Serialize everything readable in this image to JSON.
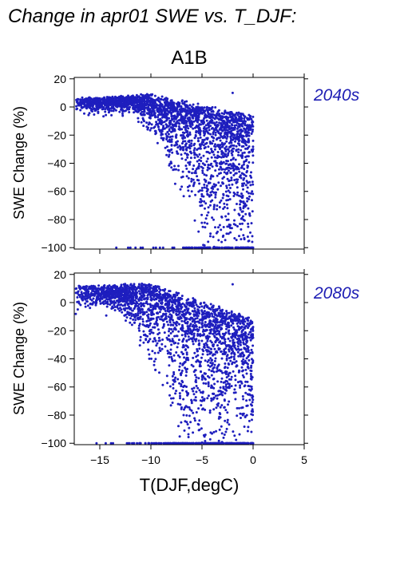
{
  "figure": {
    "suptitle": "Change in apr01 SWE vs. T_DJF:",
    "title": "A1B",
    "xlabel": "T(DJF,degC)"
  },
  "chart_data": [
    {
      "type": "scatter",
      "period_label": "2040s",
      "ylabel": "SWE Change (%)",
      "xlim": [
        -17.5,
        5
      ],
      "ylim": [
        -101,
        21
      ],
      "xticks": [
        -15,
        -10,
        -5,
        0,
        5
      ],
      "yticks": [
        20,
        0,
        -20,
        -40,
        -60,
        -80,
        -100
      ],
      "x_tick_labels_shown": false,
      "point_color": "#1e1ebe",
      "label_color": "#1e1eb4",
      "point_count_approx": 2600,
      "description_points": [
        [
          -17.3,
          5
        ],
        [
          -16,
          5
        ],
        [
          -14,
          6
        ],
        [
          -12,
          7
        ],
        [
          -10,
          5
        ],
        [
          -9,
          2
        ],
        [
          -8,
          -5
        ],
        [
          -9,
          -20
        ],
        [
          -8,
          -40
        ],
        [
          -7,
          -50
        ],
        [
          -6,
          -60
        ],
        [
          -5,
          -70
        ],
        [
          -4,
          -60
        ],
        [
          -3,
          -40
        ],
        [
          -2,
          10
        ],
        [
          -1,
          -5
        ],
        [
          0,
          -30
        ],
        [
          -11,
          -100
        ],
        [
          -6,
          -100
        ],
        [
          0,
          -100
        ]
      ]
    },
    {
      "type": "scatter",
      "period_label": "2080s",
      "ylabel": "SWE Change (%)",
      "xlim": [
        -17.5,
        5
      ],
      "ylim": [
        -101,
        21
      ],
      "xticks": [
        -15,
        -10,
        -5,
        0,
        5
      ],
      "xtick_labels": [
        "−15",
        "−10",
        "−5",
        "0",
        "5"
      ],
      "yticks": [
        20,
        0,
        -20,
        -40,
        -60,
        -80,
        -100
      ],
      "point_color": "#1e1ebe",
      "label_color": "#1e1eb4",
      "point_count_approx": 2600,
      "description_points": [
        [
          -17.3,
          10
        ],
        [
          -16,
          10
        ],
        [
          -14,
          10
        ],
        [
          -12,
          10
        ],
        [
          -10,
          5
        ],
        [
          -9,
          -10
        ],
        [
          -8,
          -30
        ],
        [
          -7,
          -50
        ],
        [
          -6,
          -70
        ],
        [
          -5,
          -70
        ],
        [
          -4,
          -60
        ],
        [
          -3,
          -50
        ],
        [
          -2,
          13
        ],
        [
          -1,
          -80
        ],
        [
          0,
          -25
        ],
        [
          -11,
          -100
        ],
        [
          -6,
          -100
        ],
        [
          0,
          -100
        ]
      ]
    }
  ],
  "ytick_labels": [
    "20",
    "0",
    "−20",
    "−40",
    "−60",
    "−80",
    "−100"
  ]
}
